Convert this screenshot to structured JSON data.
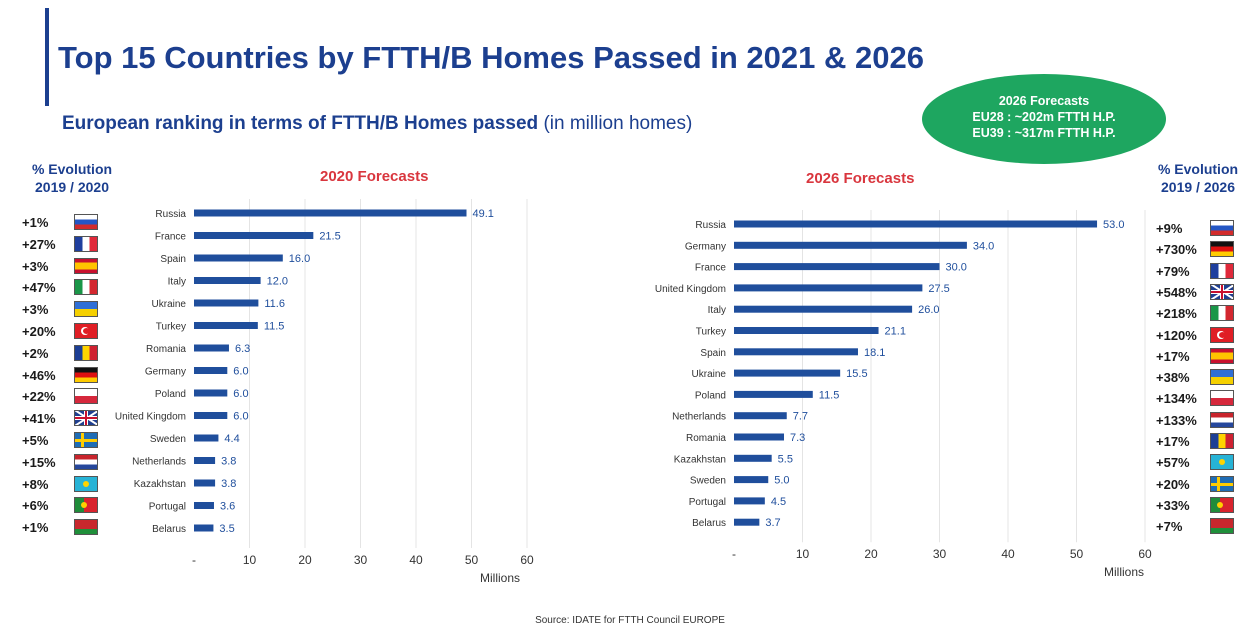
{
  "header": {
    "title": "Top 15 Countries by FTTH/B Homes Passed in 2021 & 2026",
    "subtitle_bold": "European ranking in terms of FTTH/B Homes passed",
    "subtitle_rest": "(in million homes)"
  },
  "bubble": {
    "line1": "2026 Forecasts",
    "line2": "EU28 : ~202m FTTH H.P.",
    "line3": "EU39 : ~317m FTTH H.P.",
    "color": "#1ea660"
  },
  "left_panel": {
    "evo_head_line1": "% Evolution",
    "evo_head_line2": "2019 / 2020",
    "evolutions": [
      {
        "pct": "+1%",
        "flag": "russia"
      },
      {
        "pct": "+27%",
        "flag": "france"
      },
      {
        "pct": "+3%",
        "flag": "spain"
      },
      {
        "pct": "+47%",
        "flag": "italy"
      },
      {
        "pct": "+3%",
        "flag": "ukraine"
      },
      {
        "pct": "+20%",
        "flag": "turkey"
      },
      {
        "pct": "+2%",
        "flag": "romania"
      },
      {
        "pct": "+46%",
        "flag": "germany"
      },
      {
        "pct": "+22%",
        "flag": "poland"
      },
      {
        "pct": "+41%",
        "flag": "uk"
      },
      {
        "pct": "+5%",
        "flag": "sweden"
      },
      {
        "pct": "+15%",
        "flag": "netherlands"
      },
      {
        "pct": "+8%",
        "flag": "kazakhstan"
      },
      {
        "pct": "+6%",
        "flag": "portugal"
      },
      {
        "pct": "+1%",
        "flag": "belarus"
      }
    ]
  },
  "right_panel": {
    "evo_head_line1": "% Evolution",
    "evo_head_line2": "2019 / 2026",
    "evolutions": [
      {
        "pct": "+9%",
        "flag": "russia"
      },
      {
        "pct": "+730%",
        "flag": "germany"
      },
      {
        "pct": "+79%",
        "flag": "france"
      },
      {
        "pct": "+548%",
        "flag": "uk"
      },
      {
        "pct": "+218%",
        "flag": "italy"
      },
      {
        "pct": "+120%",
        "flag": "turkey"
      },
      {
        "pct": "+17%",
        "flag": "spain"
      },
      {
        "pct": "+38%",
        "flag": "ukraine"
      },
      {
        "pct": "+134%",
        "flag": "poland"
      },
      {
        "pct": "+133%",
        "flag": "netherlands"
      },
      {
        "pct": "+17%",
        "flag": "romania"
      },
      {
        "pct": "+57%",
        "flag": "kazakhstan"
      },
      {
        "pct": "+20%",
        "flag": "sweden"
      },
      {
        "pct": "+33%",
        "flag": "portugal"
      },
      {
        "pct": "+7%",
        "flag": "belarus"
      }
    ]
  },
  "chart_data": [
    {
      "type": "bar",
      "orientation": "horizontal",
      "title": "2020 Forecasts",
      "categories": [
        "Russia",
        "France",
        "Spain",
        "Italy",
        "Ukraine",
        "Turkey",
        "Romania",
        "Germany",
        "Poland",
        "United Kingdom",
        "Sweden",
        "Netherlands",
        "Kazakhstan",
        "Portugal",
        "Belarus"
      ],
      "values": [
        49.1,
        21.5,
        16.0,
        12.0,
        11.6,
        11.5,
        6.3,
        6.0,
        6.0,
        6.0,
        4.4,
        3.8,
        3.8,
        3.6,
        3.5
      ],
      "value_labels": [
        "49.1",
        "21.5",
        "16.0",
        "12.0",
        "11.6",
        "11.5",
        "6.3",
        "6.0",
        "6.0",
        "6.0",
        "4.4",
        "3.8",
        "3.8",
        "3.6",
        "3.5"
      ],
      "xlabel": "Millions",
      "xlim": [
        0,
        60
      ],
      "xticks": [
        0,
        10,
        20,
        30,
        40,
        50,
        60
      ],
      "xtick_labels": [
        "-",
        "10",
        "20",
        "30",
        "40",
        "50",
        "60"
      ],
      "bar_color": "#1f4e9c",
      "grid": true
    },
    {
      "type": "bar",
      "orientation": "horizontal",
      "title": "2026 Forecasts",
      "categories": [
        "Russia",
        "Germany",
        "France",
        "United Kingdom",
        "Italy",
        "Turkey",
        "Spain",
        "Ukraine",
        "Poland",
        "Netherlands",
        "Romania",
        "Kazakhstan",
        "Sweden",
        "Portugal",
        "Belarus"
      ],
      "values": [
        53.0,
        34.0,
        30.0,
        27.5,
        26.0,
        21.1,
        18.1,
        15.5,
        11.5,
        7.7,
        7.3,
        5.5,
        5.0,
        4.5,
        3.7
      ],
      "value_labels": [
        "53.0",
        "34.0",
        "30.0",
        "27.5",
        "26.0",
        "21.1",
        "18.1",
        "15.5",
        "11.5",
        "7.7",
        "7.3",
        "5.5",
        "5.0",
        "4.5",
        "3.7"
      ],
      "xlabel": "Millions",
      "xlim": [
        0,
        60
      ],
      "xticks": [
        0,
        10,
        20,
        30,
        40,
        50,
        60
      ],
      "xtick_labels": [
        "-",
        "10",
        "20",
        "30",
        "40",
        "50",
        "60"
      ],
      "bar_color": "#1f4e9c",
      "grid": true
    }
  ],
  "footer": {
    "source": "Source: IDATE for FTTH Council EUROPE"
  }
}
